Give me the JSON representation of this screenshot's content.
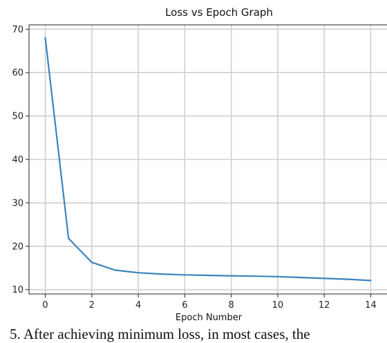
{
  "chart_data": {
    "type": "line",
    "title": "Loss vs Epoch Graph",
    "xlabel": "Epoch Number",
    "ylabel": "",
    "xlim": [
      -0.7,
      14.7
    ],
    "ylim": [
      9,
      71
    ],
    "xticks": [
      0,
      2,
      4,
      6,
      8,
      10,
      12,
      14
    ],
    "yticks": [
      10,
      20,
      30,
      40,
      50,
      60,
      70
    ],
    "grid": true,
    "series": [
      {
        "color": "#3b83bd",
        "x": [
          0,
          1,
          2,
          3,
          4,
          5,
          6,
          7,
          8,
          9,
          10,
          11,
          12,
          13,
          14
        ],
        "y": [
          68,
          21.8,
          16.3,
          14.5,
          13.9,
          13.6,
          13.4,
          13.3,
          13.2,
          13.1,
          13.0,
          12.8,
          12.6,
          12.4,
          12.1
        ]
      }
    ]
  },
  "caption": {
    "text": "5. After achieving minimum loss, in most cases, the"
  }
}
